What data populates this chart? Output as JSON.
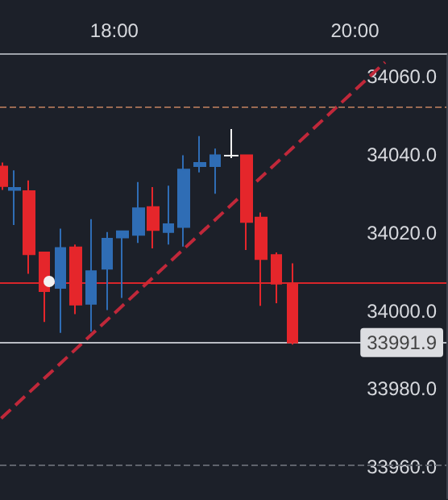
{
  "chart_data": {
    "type": "candlestick",
    "x": [
      17.07,
      17.17,
      17.29,
      17.42,
      17.55,
      17.68,
      17.81,
      17.94,
      18.07,
      18.2,
      18.32,
      18.45,
      18.58,
      18.71,
      18.84,
      19.1,
      19.22,
      19.35,
      19.48
    ],
    "ohlc": [
      [
        34037,
        34038,
        34031,
        34032
      ],
      [
        34031,
        34036,
        34022,
        34031.5
      ],
      [
        34030.7,
        34033.4,
        34009.5,
        34014.5
      ],
      [
        34015,
        34015,
        33997.2,
        34005.1
      ],
      [
        34005.9,
        34021.1,
        33994.4,
        34016.1
      ],
      [
        34016.3,
        34017,
        33999.2,
        34001.6
      ],
      [
        34001.8,
        34023.5,
        33994.7,
        34010.2
      ],
      [
        34010.8,
        34020.2,
        34000.2,
        34018.5
      ],
      [
        34018.8,
        34020.4,
        34003.3,
        34020.4
      ],
      [
        34019.5,
        34033,
        34017.4,
        34026.3
      ],
      [
        34026.6,
        34031.7,
        34016,
        34020.7
      ],
      [
        34020.2,
        34032.1,
        34017,
        34022.2
      ],
      [
        34021.5,
        34039.9,
        34016.5,
        34036.2
      ],
      [
        34037.1,
        34044.8,
        34035.5,
        34037.9
      ],
      [
        34037.1,
        34041.6,
        34030,
        34039.9
      ],
      [
        34039.9,
        34040,
        34015.6,
        34022.8
      ],
      [
        34023.9,
        34025.2,
        34001.3,
        34013.3
      ],
      [
        34014.3,
        34015,
        34002,
        34007
      ],
      [
        34007,
        34012.2,
        33991.4,
        33991.9
      ]
    ],
    "colors": [
      "#e5262b",
      "#2f6db5",
      "#e5262b",
      "#e5262b",
      "#2f6db5",
      "#e5262b",
      "#2f6db5",
      "#2f6db5",
      "#2f6db5",
      "#2f6db5",
      "#e5262b",
      "#2f6db5",
      "#2f6db5",
      "#2f6db5",
      "#2f6db5",
      "#e5262b",
      "#e5262b",
      "#e5262b",
      "#e5262b"
    ],
    "series": [
      {
        "type": "line",
        "x": [
          17.06,
          20.25
        ],
        "values": [
          33972.5,
          34063.7
        ],
        "color": "#c0283a",
        "line_style": "dashed",
        "marker": "none"
      }
    ],
    "xlim": [
      17.05,
      20.76
    ],
    "xticks": [
      {
        "value": 18,
        "label": "18:00"
      },
      {
        "value": 20,
        "label": "20:00"
      }
    ],
    "ylim": [
      33952,
      34066
    ],
    "yticks": [
      {
        "value": 33960,
        "label": "33960.0"
      },
      {
        "value": 33980,
        "label": "33980.0"
      },
      {
        "value": 34000,
        "label": "34000.0"
      },
      {
        "value": 34020,
        "label": "34020.0"
      },
      {
        "value": 34040,
        "label": "34040.0"
      },
      {
        "value": 34060,
        "label": "34060.0"
      }
    ],
    "ref_lines": [
      {
        "axis": "y",
        "value": 34052.3,
        "label": null,
        "color": "#9a6a52",
        "line_style": "dashed"
      },
      {
        "axis": "y",
        "value": 34007.4,
        "label": null,
        "color": "#d8252a",
        "line_style": "solid"
      },
      {
        "axis": "y",
        "value": 33991.9,
        "label": "33991.9",
        "color": "#b9bcc3",
        "line_style": "solid"
      },
      {
        "axis": "y",
        "value": 33960.6,
        "label": null,
        "color": "#5f636c",
        "line_style": "dashed"
      }
    ],
    "grid": false
  }
}
